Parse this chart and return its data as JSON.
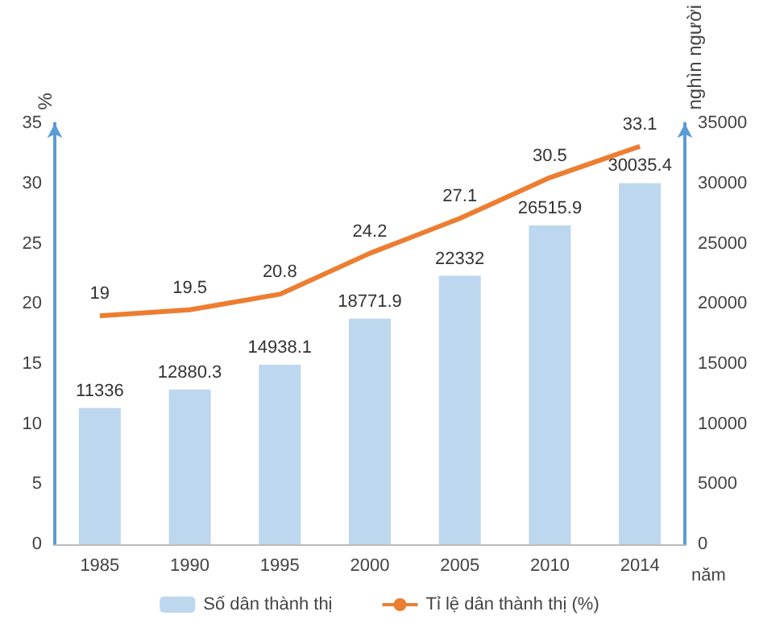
{
  "chart_data": {
    "type": "bar",
    "categories": [
      "1985",
      "1990",
      "1995",
      "2000",
      "2005",
      "2010",
      "2014"
    ],
    "series": [
      {
        "name": "Số dân thành thị",
        "axis": "y2",
        "color": "#bdd7ee",
        "values": [
          11336,
          12880.3,
          14938.1,
          18771.9,
          22332,
          26515.9,
          30035.4
        ]
      },
      {
        "name": "Tỉ lệ dân thành thị (%)",
        "type": "line",
        "axis": "y",
        "color": "#ed7d31",
        "values": [
          19,
          19.5,
          20.8,
          24.2,
          27.1,
          30.5,
          33.1
        ]
      }
    ],
    "ylabel": "%",
    "y2label": "nghìn người",
    "xlabel": "năm",
    "ylim": [
      0,
      35
    ],
    "yticks": [
      0,
      5,
      10,
      15,
      20,
      25,
      30,
      35
    ],
    "y2lim": [
      0,
      35000
    ],
    "y2ticks": [
      0,
      5000,
      10000,
      15000,
      20000,
      25000,
      30000,
      35000
    ],
    "data_labels": true,
    "legend": "bottom",
    "grid": false,
    "marker": "none"
  }
}
